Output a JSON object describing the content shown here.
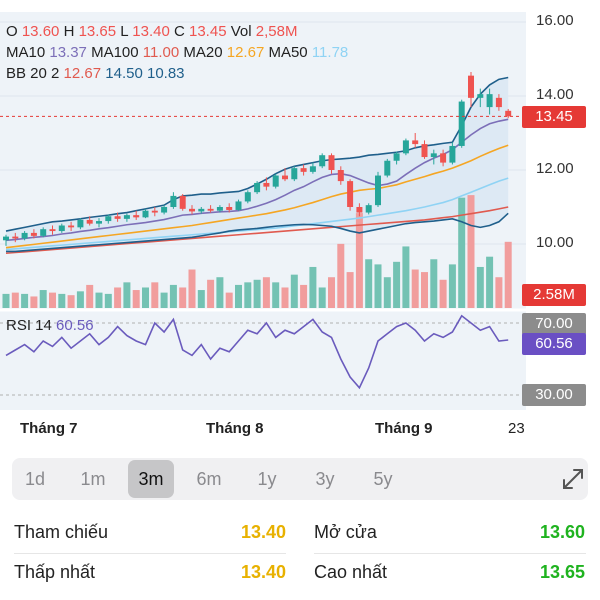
{
  "ohlc_line": {
    "o_label": "O",
    "o_value": "13.60",
    "h_label": "H",
    "h_value": "13.65",
    "l_label": "L",
    "l_value": "13.40",
    "c_label": "C",
    "c_value": "13.45",
    "vol_label": "Vol",
    "vol_value": "2,58M"
  },
  "ma_line": {
    "ma10_label": "MA10",
    "ma10_value": "13.37",
    "ma100_label": "MA100",
    "ma100_value": "11.00",
    "ma20_label": "MA20",
    "ma20_value": "12.67",
    "ma50_label": "MA50",
    "ma50_value": "11.78"
  },
  "bb_line": {
    "label": "BB 20 2",
    "mid": "12.67",
    "upper": "14.50",
    "lower": "10.83"
  },
  "rsi": {
    "label": "RSI 14",
    "value": "60.56",
    "upper_level": "70.00",
    "lower_level": "30.00"
  },
  "price_tags": {
    "last_price": "13.45",
    "last_volume": "2.58M"
  },
  "month_labels": [
    "Tháng 7",
    "Tháng 8",
    "Tháng 9",
    "23"
  ],
  "range_tabs": {
    "items": [
      "1d",
      "1m",
      "3m",
      "6m",
      "1y",
      "3y",
      "5y"
    ],
    "active": "3m"
  },
  "stats": {
    "reference_label": "Tham chiếu",
    "reference_value": "13.40",
    "open_label": "Mở cửa",
    "open_value": "13.60",
    "low_label": "Thấp nhất",
    "low_value": "13.40",
    "high_label": "Cao nhất",
    "high_value": "13.65"
  },
  "colors": {
    "up": "#26a69a",
    "down": "#ef5350",
    "vol_up": "#73c2b3",
    "vol_down": "#f19d9d",
    "ma10": "#7c6fb8",
    "ma20": "#f5a623",
    "ma50": "#8fd3f4",
    "ma100": "#e05a4f",
    "bb_band": "#1f5f8b",
    "rsi": "#6a5bbd",
    "price_line": "#e53935",
    "rsi_tag": "#6a4fc4",
    "level_tag": "#8c8c8c",
    "stat_yellow": "#e8b100",
    "stat_green": "#1fb31f"
  },
  "chart_data": {
    "type": "candlestick",
    "x_ticks": [
      "Tháng 7",
      "Tháng 8",
      "Tháng 9",
      "23"
    ],
    "y_ticks": [
      10.0,
      12.0,
      14.0,
      16.0
    ],
    "ylim": [
      9.0,
      16.0
    ],
    "candles": [
      [
        10.1,
        10.25,
        9.95,
        10.2
      ],
      [
        10.2,
        10.3,
        10.05,
        10.15
      ],
      [
        10.15,
        10.35,
        10.1,
        10.3
      ],
      [
        10.3,
        10.4,
        10.15,
        10.22
      ],
      [
        10.22,
        10.45,
        10.18,
        10.4
      ],
      [
        10.4,
        10.5,
        10.25,
        10.35
      ],
      [
        10.35,
        10.55,
        10.3,
        10.5
      ],
      [
        10.5,
        10.6,
        10.35,
        10.45
      ],
      [
        10.45,
        10.7,
        10.4,
        10.65
      ],
      [
        10.65,
        10.75,
        10.5,
        10.55
      ],
      [
        10.55,
        10.7,
        10.45,
        10.62
      ],
      [
        10.62,
        10.8,
        10.55,
        10.75
      ],
      [
        10.75,
        10.85,
        10.6,
        10.68
      ],
      [
        10.68,
        10.82,
        10.6,
        10.78
      ],
      [
        10.78,
        10.9,
        10.65,
        10.72
      ],
      [
        10.72,
        10.95,
        10.7,
        10.9
      ],
      [
        10.9,
        11.0,
        10.75,
        10.85
      ],
      [
        10.85,
        11.05,
        10.8,
        11.0
      ],
      [
        11.0,
        11.4,
        10.95,
        11.3
      ],
      [
        11.3,
        11.35,
        10.9,
        10.95
      ],
      [
        10.95,
        11.05,
        10.8,
        10.88
      ],
      [
        10.88,
        11.0,
        10.82,
        10.95
      ],
      [
        10.95,
        11.05,
        10.85,
        10.9
      ],
      [
        10.9,
        11.05,
        10.85,
        11.0
      ],
      [
        11.0,
        11.1,
        10.85,
        10.92
      ],
      [
        10.92,
        11.2,
        10.9,
        11.15
      ],
      [
        11.15,
        11.45,
        11.1,
        11.4
      ],
      [
        11.4,
        11.7,
        11.35,
        11.65
      ],
      [
        11.65,
        11.8,
        11.45,
        11.55
      ],
      [
        11.55,
        11.9,
        11.5,
        11.85
      ],
      [
        11.85,
        12.05,
        11.7,
        11.75
      ],
      [
        11.75,
        12.1,
        11.7,
        12.05
      ],
      [
        12.05,
        12.15,
        11.85,
        11.95
      ],
      [
        11.95,
        12.2,
        11.9,
        12.1
      ],
      [
        12.1,
        12.45,
        12.05,
        12.4
      ],
      [
        12.4,
        12.45,
        11.9,
        12.0
      ],
      [
        12.0,
        12.1,
        11.6,
        11.7
      ],
      [
        11.7,
        11.75,
        10.9,
        11.0
      ],
      [
        11.0,
        11.1,
        10.75,
        10.85
      ],
      [
        10.85,
        11.1,
        10.8,
        11.05
      ],
      [
        11.05,
        11.95,
        11.0,
        11.85
      ],
      [
        11.85,
        12.3,
        11.8,
        12.25
      ],
      [
        12.25,
        12.5,
        12.15,
        12.45
      ],
      [
        12.45,
        12.85,
        12.4,
        12.8
      ],
      [
        12.8,
        13.0,
        12.6,
        12.7
      ],
      [
        12.7,
        12.8,
        12.3,
        12.35
      ],
      [
        12.35,
        12.55,
        12.15,
        12.45
      ],
      [
        12.45,
        12.55,
        12.1,
        12.2
      ],
      [
        12.2,
        12.75,
        12.15,
        12.65
      ],
      [
        12.65,
        13.9,
        12.6,
        13.85
      ],
      [
        14.55,
        14.65,
        13.7,
        13.95
      ],
      [
        13.95,
        14.2,
        13.7,
        14.05
      ],
      [
        13.7,
        14.2,
        13.5,
        14.05
      ],
      [
        13.95,
        14.05,
        13.6,
        13.7
      ],
      [
        13.6,
        13.65,
        13.4,
        13.45
      ]
    ],
    "volume_millions": [
      0.55,
      0.6,
      0.55,
      0.45,
      0.7,
      0.6,
      0.55,
      0.5,
      0.65,
      0.9,
      0.6,
      0.55,
      0.8,
      1.0,
      0.7,
      0.8,
      1.0,
      0.6,
      0.9,
      0.8,
      1.5,
      0.7,
      1.1,
      1.2,
      0.6,
      0.9,
      1.0,
      1.1,
      1.2,
      1.0,
      0.8,
      1.3,
      0.9,
      1.6,
      0.8,
      1.2,
      2.5,
      1.4,
      3.7,
      1.9,
      1.7,
      1.2,
      1.8,
      2.4,
      1.5,
      1.4,
      1.9,
      1.1,
      1.7,
      4.3,
      4.4,
      1.6,
      2.0,
      1.2,
      2.58
    ],
    "series": [
      {
        "name": "MA10",
        "values": [
          10.1,
          10.12,
          10.15,
          10.18,
          10.2,
          10.23,
          10.27,
          10.3,
          10.34,
          10.37,
          10.41,
          10.44,
          10.48,
          10.52,
          10.55,
          10.58,
          10.62,
          10.66,
          10.72,
          10.78,
          10.8,
          10.83,
          10.85,
          10.87,
          10.88,
          10.9,
          10.95,
          11.02,
          11.1,
          11.2,
          11.32,
          11.45,
          11.55,
          11.68,
          11.8,
          11.88,
          11.9,
          11.85,
          11.75,
          11.65,
          11.58,
          11.62,
          11.7,
          11.88,
          12.05,
          12.2,
          12.32,
          12.42,
          12.55,
          12.75,
          12.95,
          13.12,
          13.25,
          13.32,
          13.37
        ]
      },
      {
        "name": "MA20",
        "values": [
          9.9,
          9.93,
          9.96,
          9.99,
          10.02,
          10.05,
          10.08,
          10.11,
          10.14,
          10.17,
          10.2,
          10.23,
          10.26,
          10.29,
          10.32,
          10.35,
          10.38,
          10.41,
          10.44,
          10.47,
          10.5,
          10.54,
          10.58,
          10.62,
          10.66,
          10.7,
          10.74,
          10.78,
          10.82,
          10.87,
          10.92,
          10.98,
          11.05,
          11.12,
          11.2,
          11.28,
          11.35,
          11.4,
          11.45,
          11.48,
          11.5,
          11.55,
          11.6,
          11.68,
          11.75,
          11.82,
          11.9,
          11.97,
          12.05,
          12.15,
          12.25,
          12.37,
          12.48,
          12.58,
          12.67
        ]
      },
      {
        "name": "MA50",
        "values": [
          9.85,
          9.87,
          9.89,
          9.91,
          9.93,
          9.95,
          9.97,
          9.99,
          10.01,
          10.03,
          10.05,
          10.07,
          10.09,
          10.11,
          10.13,
          10.15,
          10.17,
          10.19,
          10.21,
          10.23,
          10.25,
          10.27,
          10.29,
          10.31,
          10.33,
          10.35,
          10.37,
          10.39,
          10.41,
          10.43,
          10.46,
          10.49,
          10.52,
          10.55,
          10.58,
          10.61,
          10.64,
          10.67,
          10.7,
          10.74,
          10.78,
          10.82,
          10.86,
          10.9,
          10.95,
          11.0,
          11.06,
          11.12,
          11.2,
          11.3,
          11.4,
          11.5,
          11.6,
          11.7,
          11.78
        ]
      },
      {
        "name": "MA100",
        "values": [
          9.75,
          9.77,
          9.79,
          9.81,
          9.83,
          9.85,
          9.87,
          9.89,
          9.91,
          9.93,
          9.95,
          9.97,
          9.99,
          10.01,
          10.03,
          10.05,
          10.07,
          10.09,
          10.11,
          10.13,
          10.15,
          10.17,
          10.19,
          10.21,
          10.23,
          10.25,
          10.27,
          10.29,
          10.31,
          10.33,
          10.35,
          10.37,
          10.39,
          10.41,
          10.43,
          10.45,
          10.47,
          10.49,
          10.51,
          10.53,
          10.55,
          10.57,
          10.59,
          10.61,
          10.63,
          10.65,
          10.68,
          10.71,
          10.74,
          10.78,
          10.82,
          10.86,
          10.9,
          10.95,
          11.0
        ]
      },
      {
        "name": "BB upper",
        "values": [
          10.35,
          10.4,
          10.45,
          10.5,
          10.55,
          10.6,
          10.62,
          10.65,
          10.68,
          10.72,
          10.75,
          10.78,
          10.82,
          10.85,
          10.9,
          10.95,
          11.0,
          11.05,
          11.2,
          11.3,
          11.32,
          11.35,
          11.35,
          11.38,
          11.4,
          11.42,
          11.5,
          11.62,
          11.75,
          11.9,
          12.02,
          12.1,
          12.15,
          12.2,
          12.25,
          12.28,
          12.3,
          12.32,
          12.35,
          12.4,
          12.42,
          12.45,
          12.48,
          12.52,
          12.6,
          12.65,
          12.68,
          12.72,
          12.75,
          13.2,
          13.7,
          14.05,
          14.3,
          14.45,
          14.5
        ]
      },
      {
        "name": "BB lower",
        "values": [
          9.8,
          9.8,
          9.82,
          9.84,
          9.86,
          9.88,
          9.9,
          9.92,
          9.94,
          9.96,
          9.98,
          10.0,
          10.02,
          10.04,
          10.06,
          10.08,
          10.1,
          10.12,
          10.14,
          10.16,
          10.18,
          10.22,
          10.26,
          10.3,
          10.35,
          10.38,
          10.4,
          10.42,
          10.45,
          10.48,
          10.5,
          10.52,
          10.53,
          10.52,
          10.5,
          10.48,
          10.42,
          10.35,
          10.3,
          10.35,
          10.4,
          10.45,
          10.5,
          10.55,
          10.58,
          10.6,
          10.62,
          10.65,
          10.68,
          10.6,
          10.5,
          10.45,
          10.5,
          10.6,
          10.83
        ]
      }
    ],
    "rsi_values": [
      52,
      55,
      58,
      54,
      60,
      57,
      62,
      56,
      60,
      64,
      58,
      62,
      68,
      63,
      60,
      58,
      70,
      65,
      72,
      55,
      52,
      58,
      50,
      56,
      54,
      60,
      66,
      64,
      70,
      62,
      66,
      64,
      68,
      72,
      65,
      62,
      50,
      40,
      34,
      45,
      60,
      64,
      68,
      70,
      66,
      60,
      64,
      62,
      65,
      74,
      70,
      66,
      68,
      60,
      60.56
    ],
    "rsi_ylim": [
      30,
      70
    ]
  }
}
